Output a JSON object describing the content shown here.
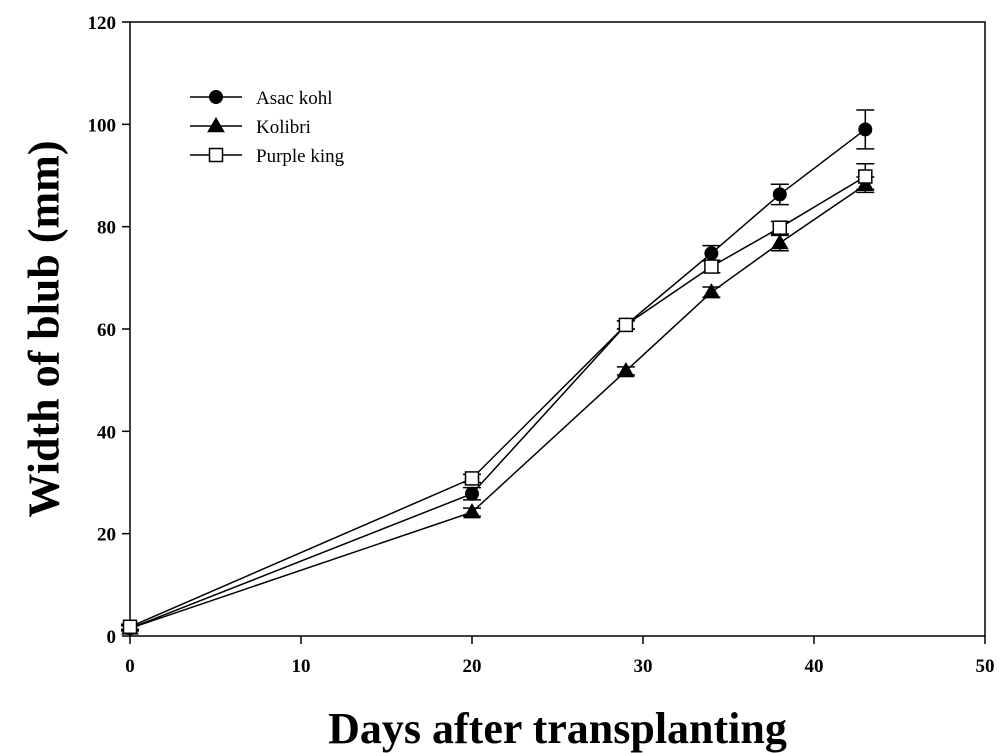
{
  "chart_data": {
    "type": "line",
    "xlabel": "Days after transplanting",
    "ylabel": "Width of blub (mm)",
    "xlim": [
      0,
      50
    ],
    "ylim": [
      0,
      120
    ],
    "xticks": [
      0,
      10,
      20,
      30,
      40,
      50
    ],
    "yticks": [
      0,
      20,
      40,
      60,
      80,
      100,
      120
    ],
    "grid": false,
    "legend_position": "top-left",
    "x": [
      0,
      20,
      29,
      34,
      38,
      43
    ],
    "series": [
      {
        "name": "Asac kohl",
        "marker": "filled-circle",
        "values": [
          1.5,
          27.8,
          60.8,
          74.8,
          86.3,
          99.0
        ],
        "errors": [
          0.5,
          1.2,
          0.8,
          1.5,
          2.0,
          3.8
        ]
      },
      {
        "name": "Kolibri",
        "marker": "filled-triangle",
        "values": [
          1.5,
          24.2,
          51.8,
          67.2,
          76.8,
          88.2
        ],
        "errors": [
          0.5,
          0.8,
          0.8,
          1.0,
          1.5,
          1.5
        ]
      },
      {
        "name": "Purple king",
        "marker": "open-square",
        "values": [
          1.8,
          30.8,
          60.8,
          72.2,
          79.8,
          89.8
        ],
        "errors": [
          0.5,
          0.8,
          0.8,
          1.2,
          1.2,
          2.5
        ]
      }
    ],
    "colors": {
      "line": "#000000",
      "background": "#ffffff"
    }
  }
}
